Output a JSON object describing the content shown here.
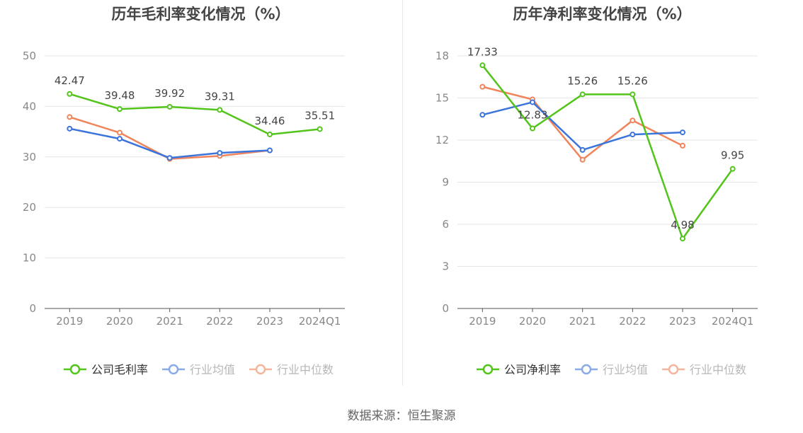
{
  "source_label": "数据来源：恒生聚源",
  "chart_data": [
    {
      "type": "line",
      "title": "历年毛利率变化情况（%）",
      "categories": [
        "2019",
        "2020",
        "2021",
        "2022",
        "2023",
        "2024Q1"
      ],
      "ylim": [
        0,
        50
      ],
      "yticks": [
        0,
        10,
        20,
        30,
        40,
        50
      ],
      "grid": true,
      "legend_position": "bottom",
      "series": [
        {
          "name": "公司毛利率",
          "color": "#52c41a",
          "values": [
            42.47,
            39.48,
            39.92,
            39.31,
            34.46,
            35.51
          ],
          "labels": [
            "42.47",
            "39.48",
            "39.92",
            "39.31",
            "34.46",
            "35.51"
          ]
        },
        {
          "name": "行业均值",
          "color": "#3b74db",
          "values": [
            35.6,
            33.6,
            29.8,
            30.8,
            31.3,
            null
          ]
        },
        {
          "name": "行业中位数",
          "color": "#f0845a",
          "values": [
            37.9,
            34.8,
            29.6,
            30.2,
            31.3,
            null
          ]
        }
      ]
    },
    {
      "type": "line",
      "title": "历年净利率变化情况（%）",
      "categories": [
        "2019",
        "2020",
        "2021",
        "2022",
        "2023",
        "2024Q1"
      ],
      "ylim": [
        0,
        18
      ],
      "yticks": [
        0,
        3,
        6,
        9,
        12,
        15,
        18
      ],
      "grid": true,
      "legend_position": "bottom",
      "series": [
        {
          "name": "公司净利率",
          "color": "#52c41a",
          "values": [
            17.33,
            12.83,
            15.26,
            15.26,
            4.98,
            9.95
          ],
          "labels": [
            "17.33",
            "12.83",
            "15.26",
            "15.26",
            "4.98",
            "9.95"
          ]
        },
        {
          "name": "行业均值",
          "color": "#3b74db",
          "values": [
            13.8,
            14.7,
            11.3,
            12.4,
            12.55,
            null
          ]
        },
        {
          "name": "行业中位数",
          "color": "#f0845a",
          "values": [
            15.8,
            14.9,
            10.6,
            13.4,
            11.6,
            null
          ]
        }
      ]
    }
  ]
}
